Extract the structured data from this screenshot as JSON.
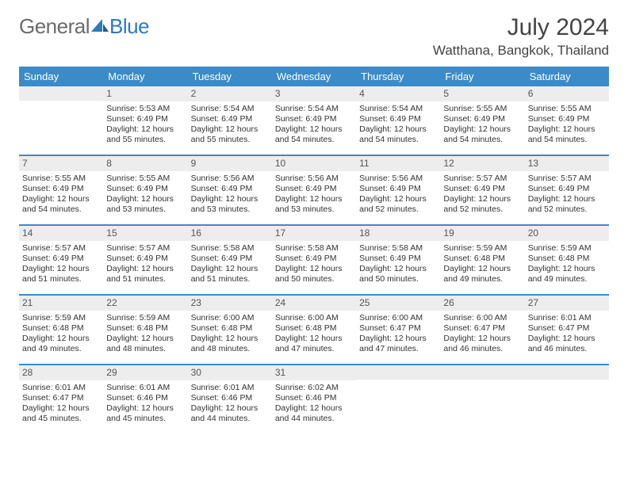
{
  "brand": {
    "word1": "General",
    "word2": "Blue"
  },
  "title": "July 2024",
  "location": "Watthana, Bangkok, Thailand",
  "colors": {
    "header_bg": "#3b8bc9",
    "header_text": "#ffffff",
    "daynum_bg": "#ededed",
    "rule": "#3b8bc9",
    "brand_gray": "#6b6b6b",
    "brand_blue": "#2b7bbf"
  },
  "dow": [
    "Sunday",
    "Monday",
    "Tuesday",
    "Wednesday",
    "Thursday",
    "Friday",
    "Saturday"
  ],
  "weeks": [
    [
      {
        "n": "",
        "sr": "",
        "ss": "",
        "dl": ""
      },
      {
        "n": "1",
        "sr": "Sunrise: 5:53 AM",
        "ss": "Sunset: 6:49 PM",
        "dl": "Daylight: 12 hours and 55 minutes."
      },
      {
        "n": "2",
        "sr": "Sunrise: 5:54 AM",
        "ss": "Sunset: 6:49 PM",
        "dl": "Daylight: 12 hours and 55 minutes."
      },
      {
        "n": "3",
        "sr": "Sunrise: 5:54 AM",
        "ss": "Sunset: 6:49 PM",
        "dl": "Daylight: 12 hours and 54 minutes."
      },
      {
        "n": "4",
        "sr": "Sunrise: 5:54 AM",
        "ss": "Sunset: 6:49 PM",
        "dl": "Daylight: 12 hours and 54 minutes."
      },
      {
        "n": "5",
        "sr": "Sunrise: 5:55 AM",
        "ss": "Sunset: 6:49 PM",
        "dl": "Daylight: 12 hours and 54 minutes."
      },
      {
        "n": "6",
        "sr": "Sunrise: 5:55 AM",
        "ss": "Sunset: 6:49 PM",
        "dl": "Daylight: 12 hours and 54 minutes."
      }
    ],
    [
      {
        "n": "7",
        "sr": "Sunrise: 5:55 AM",
        "ss": "Sunset: 6:49 PM",
        "dl": "Daylight: 12 hours and 54 minutes."
      },
      {
        "n": "8",
        "sr": "Sunrise: 5:55 AM",
        "ss": "Sunset: 6:49 PM",
        "dl": "Daylight: 12 hours and 53 minutes."
      },
      {
        "n": "9",
        "sr": "Sunrise: 5:56 AM",
        "ss": "Sunset: 6:49 PM",
        "dl": "Daylight: 12 hours and 53 minutes."
      },
      {
        "n": "10",
        "sr": "Sunrise: 5:56 AM",
        "ss": "Sunset: 6:49 PM",
        "dl": "Daylight: 12 hours and 53 minutes."
      },
      {
        "n": "11",
        "sr": "Sunrise: 5:56 AM",
        "ss": "Sunset: 6:49 PM",
        "dl": "Daylight: 12 hours and 52 minutes."
      },
      {
        "n": "12",
        "sr": "Sunrise: 5:57 AM",
        "ss": "Sunset: 6:49 PM",
        "dl": "Daylight: 12 hours and 52 minutes."
      },
      {
        "n": "13",
        "sr": "Sunrise: 5:57 AM",
        "ss": "Sunset: 6:49 PM",
        "dl": "Daylight: 12 hours and 52 minutes."
      }
    ],
    [
      {
        "n": "14",
        "sr": "Sunrise: 5:57 AM",
        "ss": "Sunset: 6:49 PM",
        "dl": "Daylight: 12 hours and 51 minutes."
      },
      {
        "n": "15",
        "sr": "Sunrise: 5:57 AM",
        "ss": "Sunset: 6:49 PM",
        "dl": "Daylight: 12 hours and 51 minutes."
      },
      {
        "n": "16",
        "sr": "Sunrise: 5:58 AM",
        "ss": "Sunset: 6:49 PM",
        "dl": "Daylight: 12 hours and 51 minutes."
      },
      {
        "n": "17",
        "sr": "Sunrise: 5:58 AM",
        "ss": "Sunset: 6:49 PM",
        "dl": "Daylight: 12 hours and 50 minutes."
      },
      {
        "n": "18",
        "sr": "Sunrise: 5:58 AM",
        "ss": "Sunset: 6:49 PM",
        "dl": "Daylight: 12 hours and 50 minutes."
      },
      {
        "n": "19",
        "sr": "Sunrise: 5:59 AM",
        "ss": "Sunset: 6:48 PM",
        "dl": "Daylight: 12 hours and 49 minutes."
      },
      {
        "n": "20",
        "sr": "Sunrise: 5:59 AM",
        "ss": "Sunset: 6:48 PM",
        "dl": "Daylight: 12 hours and 49 minutes."
      }
    ],
    [
      {
        "n": "21",
        "sr": "Sunrise: 5:59 AM",
        "ss": "Sunset: 6:48 PM",
        "dl": "Daylight: 12 hours and 49 minutes."
      },
      {
        "n": "22",
        "sr": "Sunrise: 5:59 AM",
        "ss": "Sunset: 6:48 PM",
        "dl": "Daylight: 12 hours and 48 minutes."
      },
      {
        "n": "23",
        "sr": "Sunrise: 6:00 AM",
        "ss": "Sunset: 6:48 PM",
        "dl": "Daylight: 12 hours and 48 minutes."
      },
      {
        "n": "24",
        "sr": "Sunrise: 6:00 AM",
        "ss": "Sunset: 6:48 PM",
        "dl": "Daylight: 12 hours and 47 minutes."
      },
      {
        "n": "25",
        "sr": "Sunrise: 6:00 AM",
        "ss": "Sunset: 6:47 PM",
        "dl": "Daylight: 12 hours and 47 minutes."
      },
      {
        "n": "26",
        "sr": "Sunrise: 6:00 AM",
        "ss": "Sunset: 6:47 PM",
        "dl": "Daylight: 12 hours and 46 minutes."
      },
      {
        "n": "27",
        "sr": "Sunrise: 6:01 AM",
        "ss": "Sunset: 6:47 PM",
        "dl": "Daylight: 12 hours and 46 minutes."
      }
    ],
    [
      {
        "n": "28",
        "sr": "Sunrise: 6:01 AM",
        "ss": "Sunset: 6:47 PM",
        "dl": "Daylight: 12 hours and 45 minutes."
      },
      {
        "n": "29",
        "sr": "Sunrise: 6:01 AM",
        "ss": "Sunset: 6:46 PM",
        "dl": "Daylight: 12 hours and 45 minutes."
      },
      {
        "n": "30",
        "sr": "Sunrise: 6:01 AM",
        "ss": "Sunset: 6:46 PM",
        "dl": "Daylight: 12 hours and 44 minutes."
      },
      {
        "n": "31",
        "sr": "Sunrise: 6:02 AM",
        "ss": "Sunset: 6:46 PM",
        "dl": "Daylight: 12 hours and 44 minutes."
      },
      {
        "n": "",
        "sr": "",
        "ss": "",
        "dl": ""
      },
      {
        "n": "",
        "sr": "",
        "ss": "",
        "dl": ""
      },
      {
        "n": "",
        "sr": "",
        "ss": "",
        "dl": ""
      }
    ]
  ]
}
